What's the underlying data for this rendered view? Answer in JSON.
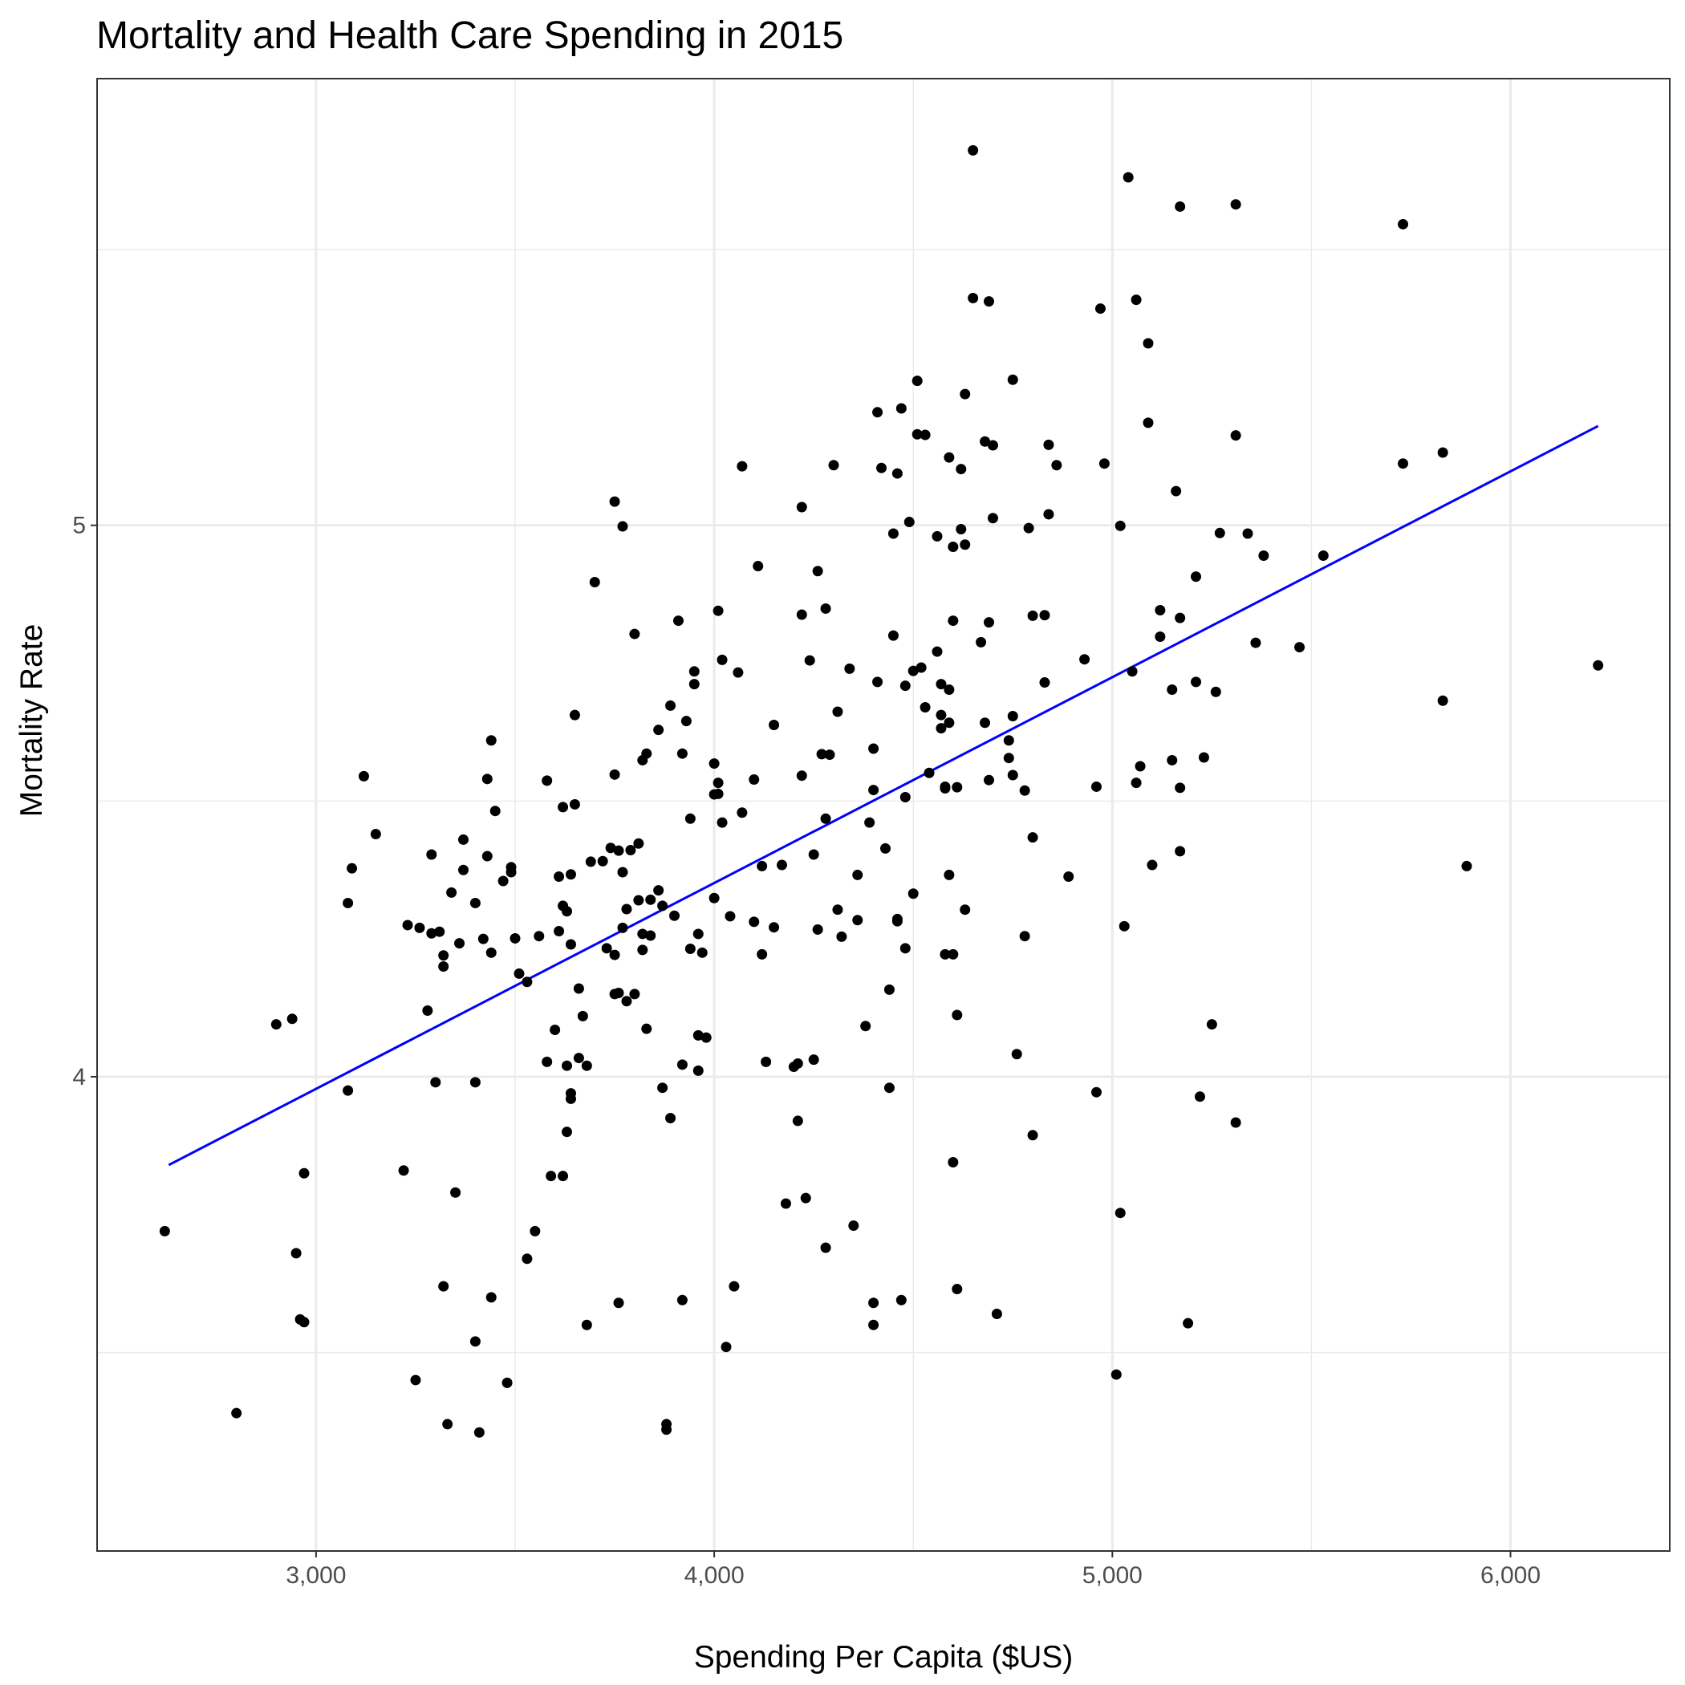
{
  "chart_data": {
    "type": "scatter",
    "title": "Mortality and Health Care Spending in 2015",
    "xlabel": "Spending Per Capita ($US)",
    "ylabel": "Mortality Rate",
    "xlim": [
      2450,
      6400
    ],
    "ylim": [
      3.14,
      5.81
    ],
    "x_ticks": [
      3000,
      4000,
      5000,
      6000
    ],
    "x_tick_labels": [
      "3,000",
      "4,000",
      "5,000",
      "6,000"
    ],
    "x_minor_ticks": [
      3500,
      4500,
      5500
    ],
    "y_ticks": [
      4,
      5
    ],
    "y_tick_labels": [
      "4",
      "5"
    ],
    "y_minor_ticks": [
      3.5,
      4.5,
      5.5
    ],
    "grid": true,
    "colors": {
      "points": "#000000",
      "fit_line": "#0000ff"
    },
    "fit_line": {
      "x": [
        2630,
        6220
      ],
      "y": [
        3.84,
        5.18
      ]
    },
    "points": [
      [
        2620,
        3.72
      ],
      [
        2800,
        3.39
      ],
      [
        2900,
        4.095
      ],
      [
        2940,
        4.105
      ],
      [
        2950,
        3.68
      ],
      [
        2960,
        3.56
      ],
      [
        2970,
        3.555
      ],
      [
        2970,
        3.825
      ],
      [
        3080,
        3.975
      ],
      [
        3080,
        4.315
      ],
      [
        3090,
        4.378
      ],
      [
        3120,
        4.545
      ],
      [
        3150,
        4.44
      ],
      [
        3220,
        3.83
      ],
      [
        3230,
        4.275
      ],
      [
        3250,
        3.45
      ],
      [
        3260,
        4.27
      ],
      [
        3280,
        4.12
      ],
      [
        3290,
        4.26
      ],
      [
        3290,
        4.403
      ],
      [
        3300,
        3.99
      ],
      [
        3310,
        4.263
      ],
      [
        3320,
        3.62
      ],
      [
        3320,
        4.2
      ],
      [
        3320,
        4.22
      ],
      [
        3330,
        3.37
      ],
      [
        3340,
        4.334
      ],
      [
        3350,
        3.79
      ],
      [
        3360,
        4.242
      ],
      [
        3370,
        4.375
      ],
      [
        3370,
        4.43
      ],
      [
        3400,
        4.315
      ],
      [
        3400,
        3.99
      ],
      [
        3400,
        3.52
      ],
      [
        3410,
        3.355
      ],
      [
        3420,
        4.25
      ],
      [
        3430,
        4.4
      ],
      [
        3430,
        4.54
      ],
      [
        3440,
        3.6
      ],
      [
        3440,
        4.61
      ],
      [
        3440,
        4.225
      ],
      [
        3450,
        4.482
      ],
      [
        3470,
        4.355
      ],
      [
        3480,
        3.445
      ],
      [
        3490,
        4.38
      ],
      [
        3490,
        4.371
      ],
      [
        3500,
        4.251
      ],
      [
        3510,
        4.187
      ],
      [
        3530,
        4.172
      ],
      [
        3530,
        3.67
      ],
      [
        3550,
        3.72
      ],
      [
        3560,
        4.255
      ],
      [
        3580,
        4.537
      ],
      [
        3580,
        4.027
      ],
      [
        3590,
        3.82
      ],
      [
        3600,
        4.085
      ],
      [
        3610,
        4.363
      ],
      [
        3610,
        4.264
      ],
      [
        3620,
        4.489
      ],
      [
        3620,
        3.82
      ],
      [
        3620,
        4.31
      ],
      [
        3630,
        3.9
      ],
      [
        3630,
        4.3
      ],
      [
        3630,
        4.02
      ],
      [
        3640,
        4.367
      ],
      [
        3640,
        3.97
      ],
      [
        3640,
        3.96
      ],
      [
        3640,
        4.24
      ],
      [
        3650,
        4.656
      ],
      [
        3650,
        4.494
      ],
      [
        3660,
        4.034
      ],
      [
        3660,
        4.16
      ],
      [
        3670,
        4.11
      ],
      [
        3680,
        3.55
      ],
      [
        3680,
        4.02
      ],
      [
        3690,
        4.39
      ],
      [
        3700,
        4.897
      ],
      [
        3720,
        4.391
      ],
      [
        3730,
        4.233
      ],
      [
        3740,
        4.415
      ],
      [
        3750,
        4.15
      ],
      [
        3750,
        5.043
      ],
      [
        3750,
        4.548
      ],
      [
        3750,
        4.221
      ],
      [
        3760,
        3.59
      ],
      [
        3760,
        4.41
      ],
      [
        3760,
        4.152
      ],
      [
        3770,
        4.998
      ],
      [
        3770,
        4.371
      ],
      [
        3770,
        4.27
      ],
      [
        3780,
        4.304
      ],
      [
        3780,
        4.137
      ],
      [
        3790,
        4.411
      ],
      [
        3800,
        4.15
      ],
      [
        3800,
        4.803
      ],
      [
        3810,
        4.423
      ],
      [
        3810,
        4.32
      ],
      [
        3820,
        4.259
      ],
      [
        3820,
        4.23
      ],
      [
        3820,
        4.574
      ],
      [
        3830,
        4.087
      ],
      [
        3830,
        4.586
      ],
      [
        3840,
        4.321
      ],
      [
        3840,
        4.256
      ],
      [
        3860,
        4.629
      ],
      [
        3860,
        4.338
      ],
      [
        3870,
        4.31
      ],
      [
        3870,
        3.98
      ],
      [
        3880,
        3.37
      ],
      [
        3880,
        3.36
      ],
      [
        3890,
        3.925
      ],
      [
        3890,
        4.673
      ],
      [
        3900,
        4.292
      ],
      [
        3910,
        4.827
      ],
      [
        3920,
        4.022
      ],
      [
        3920,
        3.595
      ],
      [
        3920,
        4.586
      ],
      [
        3930,
        4.645
      ],
      [
        3940,
        4.468
      ],
      [
        3940,
        4.232
      ],
      [
        3950,
        4.735
      ],
      [
        3950,
        4.712
      ],
      [
        3960,
        4.011
      ],
      [
        3960,
        4.259
      ],
      [
        3960,
        4.075
      ],
      [
        3970,
        4.225
      ],
      [
        3980,
        4.071
      ],
      [
        4000,
        4.324
      ],
      [
        4000,
        4.512
      ],
      [
        4000,
        4.568
      ],
      [
        4010,
        4.513
      ],
      [
        4010,
        4.533
      ],
      [
        4010,
        4.845
      ],
      [
        4020,
        4.461
      ],
      [
        4020,
        4.756
      ],
      [
        4030,
        3.51
      ],
      [
        4040,
        4.291
      ],
      [
        4050,
        3.62
      ],
      [
        4060,
        4.733
      ],
      [
        4070,
        4.479
      ],
      [
        4070,
        5.107
      ],
      [
        4100,
        4.539
      ],
      [
        4100,
        4.281
      ],
      [
        4110,
        4.926
      ],
      [
        4120,
        4.222
      ],
      [
        4120,
        4.382
      ],
      [
        4130,
        4.027
      ],
      [
        4150,
        4.271
      ],
      [
        4150,
        4.638
      ],
      [
        4170,
        4.384
      ],
      [
        4180,
        3.77
      ],
      [
        4200,
        4.018
      ],
      [
        4210,
        3.92
      ],
      [
        4210,
        4.024
      ],
      [
        4220,
        4.546
      ],
      [
        4220,
        4.838
      ],
      [
        4220,
        5.033
      ],
      [
        4230,
        3.78
      ],
      [
        4240,
        4.755
      ],
      [
        4250,
        4.031
      ],
      [
        4250,
        4.403
      ],
      [
        4260,
        4.917
      ],
      [
        4260,
        4.267
      ],
      [
        4270,
        4.585
      ],
      [
        4280,
        4.849
      ],
      [
        4280,
        4.468
      ],
      [
        4280,
        3.69
      ],
      [
        4290,
        4.584
      ],
      [
        4300,
        5.109
      ],
      [
        4310,
        4.662
      ],
      [
        4310,
        4.303
      ],
      [
        4320,
        4.254
      ],
      [
        4340,
        4.74
      ],
      [
        4350,
        3.73
      ],
      [
        4360,
        4.366
      ],
      [
        4360,
        4.284
      ],
      [
        4380,
        4.092
      ],
      [
        4390,
        4.461
      ],
      [
        4400,
        4.52
      ],
      [
        4400,
        4.595
      ],
      [
        4400,
        3.55
      ],
      [
        4400,
        3.59
      ],
      [
        4410,
        5.205
      ],
      [
        4410,
        4.716
      ],
      [
        4420,
        5.104
      ],
      [
        4430,
        4.414
      ],
      [
        4440,
        4.158
      ],
      [
        4440,
        3.98
      ],
      [
        4450,
        4.8
      ],
      [
        4450,
        4.985
      ],
      [
        4460,
        4.286
      ],
      [
        4460,
        4.282
      ],
      [
        4460,
        5.094
      ],
      [
        4470,
        5.212
      ],
      [
        4470,
        3.595
      ],
      [
        4480,
        4.507
      ],
      [
        4480,
        4.233
      ],
      [
        4480,
        4.709
      ],
      [
        4490,
        5.006
      ],
      [
        4500,
        4.332
      ],
      [
        4500,
        4.736
      ],
      [
        4510,
        5.262
      ],
      [
        4510,
        5.165
      ],
      [
        4520,
        4.742
      ],
      [
        4530,
        4.67
      ],
      [
        4530,
        5.164
      ],
      [
        4540,
        4.551
      ],
      [
        4560,
        4.98
      ],
      [
        4560,
        4.771
      ],
      [
        4570,
        4.712
      ],
      [
        4570,
        4.656
      ],
      [
        4570,
        4.632
      ],
      [
        4580,
        4.523
      ],
      [
        4580,
        4.526
      ],
      [
        4580,
        4.222
      ],
      [
        4590,
        5.123
      ],
      [
        4590,
        4.642
      ],
      [
        4590,
        4.702
      ],
      [
        4590,
        4.366
      ],
      [
        4600,
        3.845
      ],
      [
        4600,
        4.827
      ],
      [
        4600,
        4.961
      ],
      [
        4600,
        4.222
      ],
      [
        4610,
        4.525
      ],
      [
        4610,
        4.112
      ],
      [
        4610,
        3.615
      ],
      [
        4620,
        5.102
      ],
      [
        4620,
        4.993
      ],
      [
        4630,
        4.303
      ],
      [
        4630,
        5.238
      ],
      [
        4630,
        4.965
      ],
      [
        4650,
        5.68
      ],
      [
        4650,
        5.412
      ],
      [
        4670,
        4.788
      ],
      [
        4680,
        4.642
      ],
      [
        4680,
        5.152
      ],
      [
        4690,
        5.406
      ],
      [
        4690,
        4.538
      ],
      [
        4690,
        4.824
      ],
      [
        4700,
        5.145
      ],
      [
        4700,
        5.013
      ],
      [
        4710,
        3.57
      ],
      [
        4740,
        4.578
      ],
      [
        4740,
        4.61
      ],
      [
        4750,
        5.264
      ],
      [
        4750,
        4.654
      ],
      [
        4750,
        4.547
      ],
      [
        4760,
        4.041
      ],
      [
        4780,
        4.255
      ],
      [
        4780,
        4.519
      ],
      [
        4790,
        4.995
      ],
      [
        4800,
        4.434
      ],
      [
        4800,
        4.836
      ],
      [
        4800,
        3.894
      ],
      [
        4830,
        4.715
      ],
      [
        4830,
        4.837
      ],
      [
        4840,
        5.02
      ],
      [
        4840,
        5.146
      ],
      [
        4860,
        5.109
      ],
      [
        4890,
        4.363
      ],
      [
        4930,
        4.757
      ],
      [
        4960,
        4.526
      ],
      [
        4960,
        3.972
      ],
      [
        4970,
        5.393
      ],
      [
        4980,
        5.112
      ],
      [
        5010,
        3.46
      ],
      [
        5020,
        4.999
      ],
      [
        5020,
        3.753
      ],
      [
        5030,
        4.273
      ],
      [
        5040,
        5.631
      ],
      [
        5050,
        4.735
      ],
      [
        5060,
        5.409
      ],
      [
        5060,
        4.533
      ],
      [
        5070,
        4.563
      ],
      [
        5090,
        5.186
      ],
      [
        5090,
        5.33
      ],
      [
        5100,
        4.384
      ],
      [
        5120,
        4.846
      ],
      [
        5120,
        4.798
      ],
      [
        5150,
        4.702
      ],
      [
        5150,
        4.574
      ],
      [
        5160,
        5.062
      ],
      [
        5170,
        4.832
      ],
      [
        5170,
        4.524
      ],
      [
        5170,
        4.409
      ],
      [
        5170,
        5.578
      ],
      [
        5190,
        3.553
      ],
      [
        5210,
        4.716
      ],
      [
        5210,
        4.907
      ],
      [
        5220,
        3.964
      ],
      [
        5230,
        4.579
      ],
      [
        5250,
        4.095
      ],
      [
        5260,
        4.698
      ],
      [
        5270,
        4.986
      ],
      [
        5310,
        3.917
      ],
      [
        5310,
        5.163
      ],
      [
        5310,
        5.582
      ],
      [
        5340,
        4.985
      ],
      [
        5360,
        4.787
      ],
      [
        5380,
        4.945
      ],
      [
        5470,
        4.779
      ],
      [
        5530,
        4.945
      ],
      [
        5730,
        5.546
      ],
      [
        5730,
        5.112
      ],
      [
        5830,
        4.682
      ],
      [
        5830,
        5.132
      ],
      [
        5890,
        4.382
      ],
      [
        6220,
        4.746
      ]
    ]
  }
}
